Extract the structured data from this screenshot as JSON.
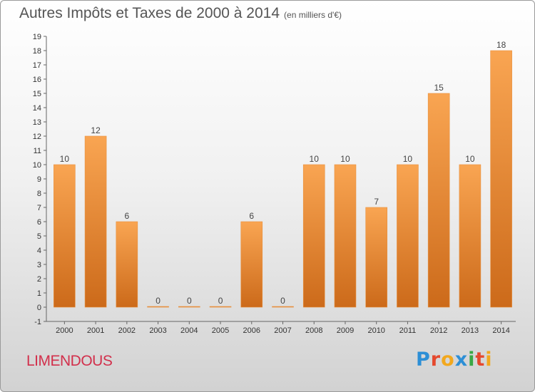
{
  "header": {
    "title": "Autres Impôts et Taxes de 2000 à 2014",
    "unit": "(en milliers d'€)"
  },
  "footer": {
    "town": "LIMENDOUS",
    "brand": "Proxiti"
  },
  "colors": {
    "bar_light": "#f7a14c",
    "bar_dark": "#cf6e1c",
    "title": "#555555",
    "town": "#d2304c"
  },
  "chart_data": {
    "type": "bar",
    "title": "Autres Impôts et Taxes de 2000 à 2014",
    "subtitle": "(en milliers d'€)",
    "categories": [
      "2000",
      "2001",
      "2002",
      "2003",
      "2004",
      "2005",
      "2006",
      "2007",
      "2008",
      "2009",
      "2010",
      "2011",
      "2012",
      "2013",
      "2014"
    ],
    "values": [
      10,
      12,
      6,
      0,
      0,
      0,
      6,
      0,
      10,
      10,
      7,
      10,
      15,
      10,
      18
    ],
    "data_labels": [
      "10",
      "12",
      "6",
      "0",
      "0",
      "0",
      "6",
      "0",
      "10",
      "10",
      "7",
      "10",
      "15",
      "10",
      "18"
    ],
    "y_tick_labels": [
      "-1",
      "0",
      "1",
      "2",
      "3",
      "4",
      "5",
      "6",
      "7",
      "8",
      "9",
      "10",
      "11",
      "12",
      "13",
      "14",
      "15",
      "16",
      "17",
      "18",
      "19"
    ],
    "ylim": [
      -1,
      19
    ],
    "grid": false,
    "legend": "none"
  }
}
